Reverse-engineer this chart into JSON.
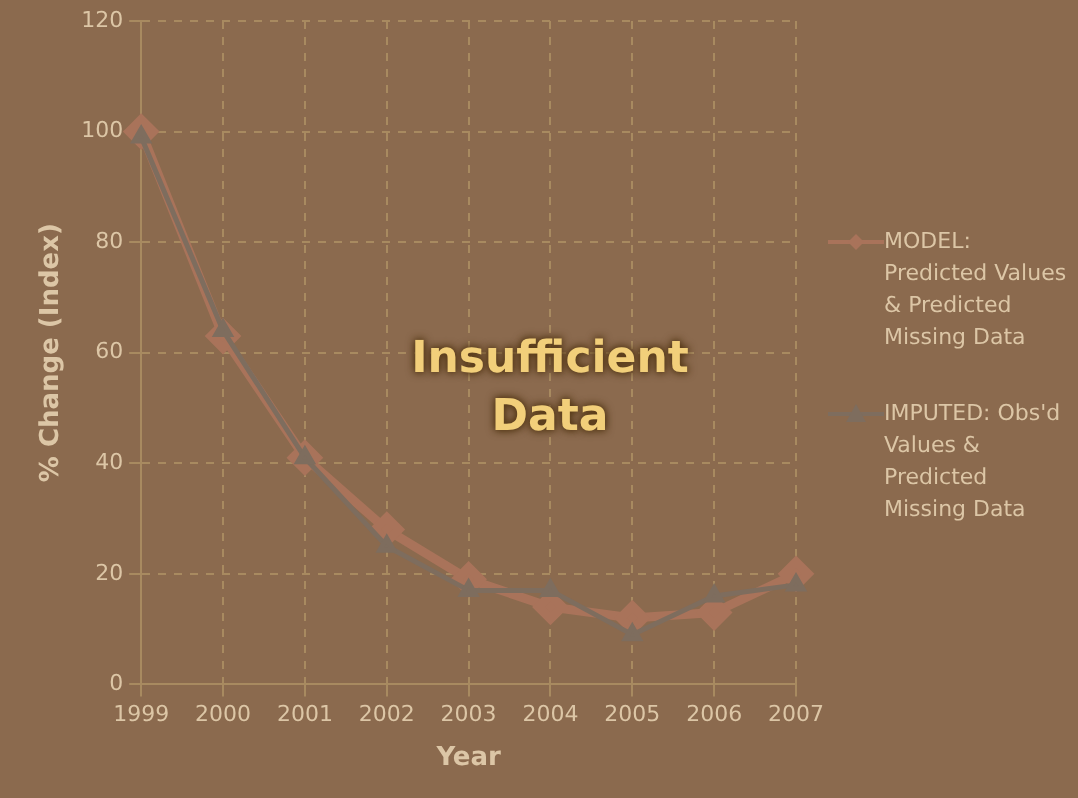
{
  "chart_data": {
    "type": "line",
    "xlabel": "Year",
    "ylabel": "% Change (Index)",
    "categories": [
      "1999",
      "2000",
      "2001",
      "2002",
      "2003",
      "2004",
      "2005",
      "2006",
      "2007"
    ],
    "series": [
      {
        "name": "MODEL: Predicted Values & Predicted Missing Data",
        "color": "#a9735a",
        "marker": "diamond",
        "values": [
          100,
          63,
          41,
          28,
          19,
          14,
          12,
          13,
          20
        ]
      },
      {
        "name": "IMPUTED: Obs'd Values & Predicted Missing Data",
        "color": "#7e6d5e",
        "marker": "triangle",
        "values": [
          99,
          64,
          41,
          25,
          17,
          17,
          9,
          16,
          18
        ]
      }
    ],
    "ylim": [
      0,
      120
    ],
    "yticks": [
      0,
      20,
      40,
      60,
      80,
      100,
      120
    ],
    "grid": true,
    "legend": "right",
    "annotations": [
      "Insufficient Data"
    ]
  }
}
